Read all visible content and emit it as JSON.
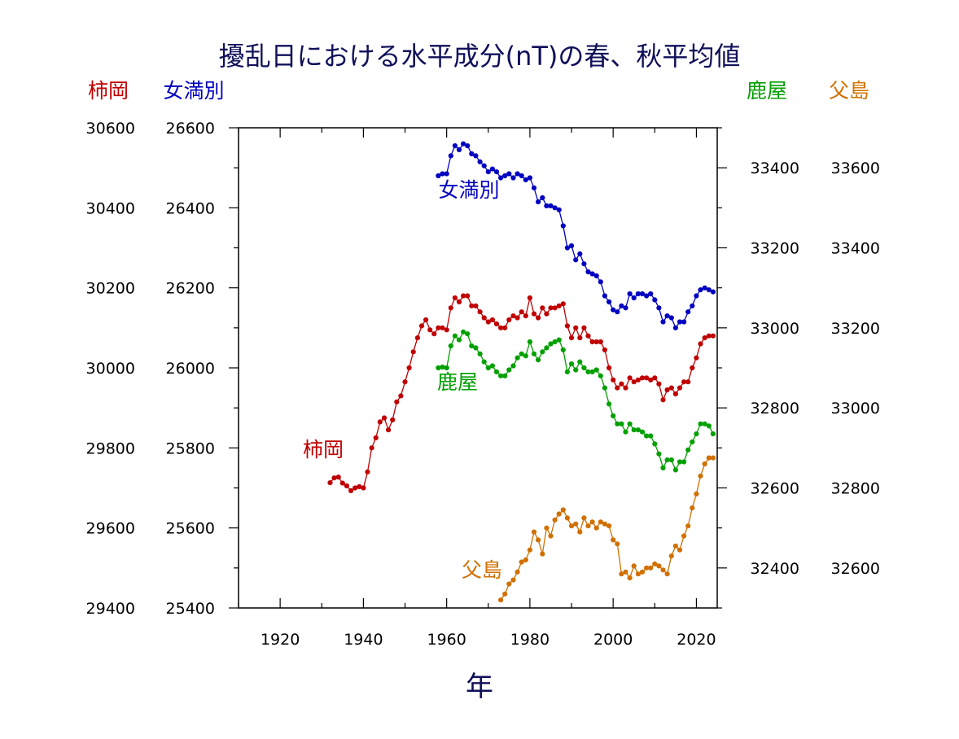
{
  "chart_data": {
    "type": "line",
    "title": "擾乱日における水平成分(nT)の春、秋平均値",
    "xlabel": "年",
    "xlim": [
      1910,
      2025
    ],
    "x_ticks": [
      "1920",
      "1940",
      "1960",
      "1980",
      "2000",
      "2020"
    ],
    "grid": false,
    "axes": [
      {
        "name": "柿岡",
        "position": "left-outer",
        "color": "#c00000",
        "ylim": [
          29400,
          30600
        ],
        "ticks": [
          "29400",
          "29600",
          "29800",
          "30000",
          "30200",
          "30400",
          "30600"
        ]
      },
      {
        "name": "女満別",
        "position": "left-inner",
        "color": "#0000c0",
        "ylim": [
          25400,
          26600
        ],
        "ticks": [
          "25400",
          "25600",
          "25800",
          "26000",
          "26200",
          "26400",
          "26600"
        ]
      },
      {
        "name": "鹿屋",
        "position": "right-inner",
        "color": "#00a000",
        "ylim": [
          32300,
          33500
        ],
        "ticks": [
          "32400",
          "32600",
          "32800",
          "33000",
          "33200",
          "33400"
        ]
      },
      {
        "name": "父島",
        "position": "right-outer",
        "color": "#d07000",
        "ylim": [
          32500,
          33700
        ],
        "ticks": [
          "32600",
          "32800",
          "33000",
          "33200",
          "33400",
          "33600"
        ]
      }
    ],
    "series": [
      {
        "name": "女満別",
        "axis": 1,
        "color": "#0000c0",
        "x": [
          1958,
          1959,
          1960,
          1961,
          1962,
          1963,
          1964,
          1965,
          1966,
          1967,
          1968,
          1969,
          1970,
          1971,
          1972,
          1973,
          1974,
          1975,
          1976,
          1977,
          1978,
          1979,
          1980,
          1981,
          1982,
          1983,
          1984,
          1985,
          1986,
          1987,
          1988,
          1989,
          1990,
          1991,
          1992,
          1993,
          1994,
          1995,
          1996,
          1997,
          1998,
          1999,
          2000,
          2001,
          2002,
          2003,
          2004,
          2005,
          2006,
          2007,
          2008,
          2009,
          2010,
          2011,
          2012,
          2013,
          2014,
          2015,
          2016,
          2017,
          2018,
          2019,
          2020,
          2021,
          2022,
          2023,
          2024
        ],
        "y": [
          26480,
          26485,
          26485,
          26530,
          26555,
          26545,
          26560,
          26555,
          26535,
          26530,
          26515,
          26505,
          26490,
          26497,
          26490,
          26475,
          26480,
          26485,
          26475,
          26485,
          26480,
          26470,
          26475,
          26450,
          26415,
          26425,
          26405,
          26405,
          26400,
          26395,
          26355,
          26300,
          26305,
          26270,
          26285,
          26260,
          26240,
          26235,
          26230,
          26215,
          26180,
          26165,
          26145,
          26140,
          26155,
          26150,
          26185,
          26175,
          26185,
          26185,
          26180,
          26185,
          26170,
          26150,
          26115,
          26130,
          26125,
          26100,
          26115,
          26115,
          26140,
          26155,
          26180,
          26195,
          26200,
          26195,
          26190
        ]
      },
      {
        "name": "柿岡",
        "axis": 0,
        "color": "#c00000",
        "x": [
          1932,
          1933,
          1934,
          1935,
          1936,
          1937,
          1938,
          1939,
          1940,
          1941,
          1942,
          1943,
          1944,
          1945,
          1946,
          1947,
          1948,
          1949,
          1950,
          1951,
          1952,
          1953,
          1954,
          1955,
          1956,
          1957,
          1958,
          1959,
          1960,
          1961,
          1962,
          1963,
          1964,
          1965,
          1966,
          1967,
          1968,
          1969,
          1970,
          1971,
          1972,
          1973,
          1974,
          1975,
          1976,
          1977,
          1978,
          1979,
          1980,
          1981,
          1982,
          1983,
          1984,
          1985,
          1986,
          1987,
          1988,
          1989,
          1990,
          1991,
          1992,
          1993,
          1994,
          1995,
          1996,
          1997,
          1998,
          1999,
          2000,
          2001,
          2002,
          2003,
          2004,
          2005,
          2006,
          2007,
          2008,
          2009,
          2010,
          2011,
          2012,
          2013,
          2014,
          2015,
          2016,
          2017,
          2018,
          2019,
          2020,
          2021,
          2022,
          2023,
          2024
        ],
        "y": [
          29713,
          29725,
          29727,
          29712,
          29705,
          29693,
          29700,
          29703,
          29700,
          29740,
          29800,
          29825,
          29865,
          29875,
          29845,
          29870,
          29915,
          29930,
          29965,
          30000,
          30040,
          30075,
          30105,
          30120,
          30095,
          30085,
          30100,
          30100,
          30095,
          30150,
          30175,
          30165,
          30180,
          30180,
          30155,
          30155,
          30140,
          30125,
          30115,
          30120,
          30110,
          30100,
          30100,
          30120,
          30130,
          30125,
          30140,
          30130,
          30175,
          30135,
          30125,
          30150,
          30135,
          30150,
          30150,
          30155,
          30160,
          30105,
          30075,
          30100,
          30075,
          30100,
          30080,
          30065,
          30065,
          30065,
          30045,
          30000,
          29970,
          29950,
          29960,
          29950,
          29975,
          29965,
          29970,
          29975,
          29975,
          29970,
          29975,
          29960,
          29920,
          29945,
          29950,
          29935,
          29950,
          29965,
          29965,
          30000,
          30025,
          30060,
          30075,
          30080,
          30080
        ]
      },
      {
        "name": "鹿屋",
        "axis": 2,
        "color": "#00a000",
        "x": [
          1958,
          1959,
          1960,
          1961,
          1962,
          1963,
          1964,
          1965,
          1966,
          1967,
          1968,
          1969,
          1970,
          1971,
          1972,
          1973,
          1974,
          1975,
          1976,
          1977,
          1978,
          1979,
          1980,
          1981,
          1982,
          1983,
          1984,
          1985,
          1986,
          1987,
          1988,
          1989,
          1990,
          1991,
          1992,
          1993,
          1994,
          1995,
          1996,
          1997,
          1998,
          1999,
          2000,
          2001,
          2002,
          2003,
          2004,
          2005,
          2006,
          2007,
          2008,
          2009,
          2010,
          2011,
          2012,
          2013,
          2014,
          2015,
          2016,
          2017,
          2018,
          2019,
          2020,
          2021,
          2022,
          2023,
          2024
        ],
        "y": [
          32900,
          32902,
          32900,
          32955,
          32980,
          32970,
          32990,
          32985,
          32955,
          32950,
          32935,
          32915,
          32900,
          32905,
          32890,
          32880,
          32880,
          32895,
          32905,
          32925,
          32935,
          32930,
          32965,
          32935,
          32920,
          32940,
          32950,
          32960,
          32965,
          32970,
          32945,
          32890,
          32910,
          32895,
          32915,
          32900,
          32890,
          32890,
          32895,
          32880,
          32850,
          32810,
          32780,
          32760,
          32760,
          32740,
          32760,
          32745,
          32745,
          32740,
          32730,
          32730,
          32710,
          32685,
          32650,
          32670,
          32670,
          32645,
          32665,
          32665,
          32695,
          32715,
          32735,
          32760,
          32760,
          32755,
          32735
        ]
      },
      {
        "name": "父島",
        "axis": 3,
        "color": "#d07000",
        "x": [
          1973,
          1974,
          1975,
          1976,
          1977,
          1978,
          1979,
          1980,
          1981,
          1982,
          1983,
          1984,
          1985,
          1986,
          1987,
          1988,
          1989,
          1990,
          1991,
          1992,
          1993,
          1994,
          1995,
          1996,
          1997,
          1998,
          1999,
          2000,
          2001,
          2002,
          2003,
          2004,
          2005,
          2006,
          2007,
          2008,
          2009,
          2010,
          2011,
          2012,
          2013,
          2014,
          2015,
          2016,
          2017,
          2018,
          2019,
          2020,
          2021,
          2022,
          2023,
          2024
        ],
        "y": [
          32520,
          32535,
          32560,
          32570,
          32590,
          32615,
          32620,
          32645,
          32690,
          32670,
          32635,
          32700,
          32680,
          32720,
          32735,
          32745,
          32725,
          32705,
          32710,
          32690,
          32725,
          32705,
          32715,
          32700,
          32715,
          32710,
          32705,
          32670,
          32660,
          32585,
          32590,
          32575,
          32605,
          32585,
          32590,
          32600,
          32600,
          32610,
          32605,
          32595,
          32585,
          32630,
          32655,
          32645,
          32680,
          32705,
          32750,
          32785,
          32830,
          32860,
          32875,
          32875
        ]
      }
    ],
    "series_labels": [
      "女満別",
      "柿岡",
      "鹿屋",
      "父島"
    ]
  }
}
